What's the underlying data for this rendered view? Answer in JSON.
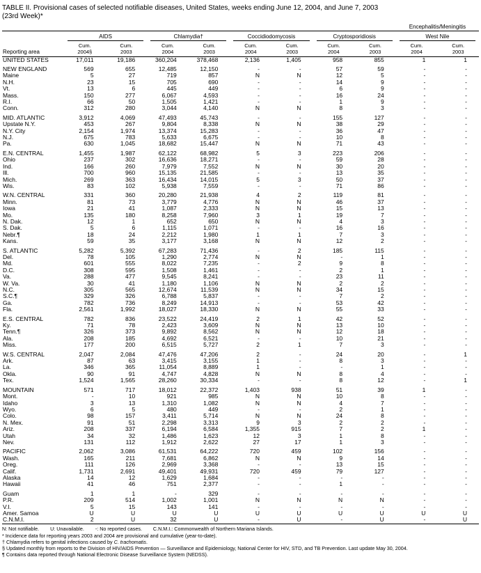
{
  "title": "TABLE II. Provisional cases of selected notifiable diseases, United States, weeks ending June 12, 2004, and June 7, 2003\n(23rd Week)*",
  "colors": {
    "background": "#ffffff",
    "text": "#000000",
    "rules": "#000000"
  },
  "header": {
    "reporting_area_label": "Reporting area",
    "groups": [
      {
        "label": "AIDS",
        "cum2004": "Cum.\n2004§",
        "cum2003": "Cum.\n2003"
      },
      {
        "label": "Chlamydia†",
        "cum2004": "Cum.\n2004",
        "cum2003": "Cum.\n2003"
      },
      {
        "label": "Coccidiodomycosis",
        "cum2004": "Cum.\n2004",
        "cum2003": "Cum.\n2003"
      },
      {
        "label": "Cryptosporidiosis",
        "cum2004": "Cum.\n2004",
        "cum2003": "Cum.\n2003"
      },
      {
        "top_label": "Encephalitis/Meningitis",
        "label": "West Nile",
        "cum2004": "Cum.\n2004",
        "cum2003": "Cum.\n2003"
      }
    ]
  },
  "table": {
    "rows": [
      {
        "area": "UNITED STATES",
        "section": true,
        "values": [
          "17,011",
          "19,186",
          "360,204",
          "378,468",
          "2,136",
          "1,405",
          "958",
          "855",
          "1",
          "1"
        ]
      },
      {
        "area": "NEW ENGLAND",
        "section": true,
        "gap": true,
        "values": [
          "569",
          "655",
          "12,485",
          "12,150",
          "-",
          "-",
          "57",
          "59",
          "-",
          "-"
        ]
      },
      {
        "area": "Maine",
        "values": [
          "5",
          "27",
          "719",
          "857",
          "N",
          "N",
          "12",
          "5",
          "-",
          "-"
        ]
      },
      {
        "area": "N.H.",
        "values": [
          "23",
          "15",
          "705",
          "690",
          "-",
          "-",
          "14",
          "9",
          "-",
          "-"
        ]
      },
      {
        "area": "Vt.",
        "values": [
          "13",
          "6",
          "445",
          "449",
          "-",
          "-",
          "6",
          "9",
          "-",
          "-"
        ]
      },
      {
        "area": "Mass.",
        "values": [
          "150",
          "277",
          "6,067",
          "4,593",
          "-",
          "-",
          "16",
          "24",
          "-",
          "-"
        ]
      },
      {
        "area": "R.I.",
        "values": [
          "66",
          "50",
          "1,505",
          "1,421",
          "-",
          "-",
          "1",
          "9",
          "-",
          "-"
        ]
      },
      {
        "area": "Conn.",
        "values": [
          "312",
          "280",
          "3,044",
          "4,140",
          "N",
          "N",
          "8",
          "3",
          "-",
          "-"
        ]
      },
      {
        "area": "MID. ATLANTIC",
        "section": true,
        "gap": true,
        "values": [
          "3,912",
          "4,069",
          "47,493",
          "45,743",
          "-",
          "-",
          "155",
          "127",
          "-",
          "-"
        ]
      },
      {
        "area": "Upstate N.Y.",
        "values": [
          "453",
          "267",
          "9,804",
          "8,338",
          "N",
          "N",
          "38",
          "29",
          "-",
          "-"
        ]
      },
      {
        "area": "N.Y. City",
        "values": [
          "2,154",
          "1,974",
          "13,374",
          "15,283",
          "-",
          "-",
          "36",
          "47",
          "-",
          "-"
        ]
      },
      {
        "area": "N.J.",
        "values": [
          "675",
          "783",
          "5,633",
          "6,675",
          "-",
          "-",
          "10",
          "8",
          "-",
          "-"
        ]
      },
      {
        "area": "Pa.",
        "values": [
          "630",
          "1,045",
          "18,682",
          "15,447",
          "N",
          "N",
          "71",
          "43",
          "-",
          "-"
        ]
      },
      {
        "area": "E.N. CENTRAL",
        "section": true,
        "gap": true,
        "values": [
          "1,455",
          "1,987",
          "62,122",
          "68,982",
          "5",
          "3",
          "223",
          "206",
          "-",
          "-"
        ]
      },
      {
        "area": "Ohio",
        "values": [
          "237",
          "302",
          "16,636",
          "18,271",
          "-",
          "-",
          "59",
          "28",
          "-",
          "-"
        ]
      },
      {
        "area": "Ind.",
        "values": [
          "166",
          "260",
          "7,979",
          "7,552",
          "N",
          "N",
          "30",
          "20",
          "-",
          "-"
        ]
      },
      {
        "area": "Ill.",
        "values": [
          "700",
          "960",
          "15,135",
          "21,585",
          "-",
          "-",
          "13",
          "35",
          "-",
          "-"
        ]
      },
      {
        "area": "Mich.",
        "values": [
          "269",
          "363",
          "16,434",
          "14,015",
          "5",
          "3",
          "50",
          "37",
          "-",
          "-"
        ]
      },
      {
        "area": "Wis.",
        "values": [
          "83",
          "102",
          "5,938",
          "7,559",
          "-",
          "-",
          "71",
          "86",
          "-",
          "-"
        ]
      },
      {
        "area": "W.N. CENTRAL",
        "section": true,
        "gap": true,
        "values": [
          "331",
          "360",
          "20,280",
          "21,938",
          "4",
          "2",
          "119",
          "81",
          "-",
          "-"
        ]
      },
      {
        "area": "Minn.",
        "values": [
          "81",
          "73",
          "3,779",
          "4,776",
          "N",
          "N",
          "46",
          "37",
          "-",
          "-"
        ]
      },
      {
        "area": "Iowa",
        "values": [
          "21",
          "41",
          "1,087",
          "2,333",
          "N",
          "N",
          "15",
          "13",
          "-",
          "-"
        ]
      },
      {
        "area": "Mo.",
        "values": [
          "135",
          "180",
          "8,258",
          "7,960",
          "3",
          "1",
          "19",
          "7",
          "-",
          "-"
        ]
      },
      {
        "area": "N. Dak.",
        "values": [
          "12",
          "1",
          "652",
          "650",
          "N",
          "N",
          "4",
          "3",
          "-",
          "-"
        ]
      },
      {
        "area": "S. Dak.",
        "values": [
          "5",
          "6",
          "1,115",
          "1,071",
          "-",
          "-",
          "16",
          "16",
          "-",
          "-"
        ]
      },
      {
        "area": "Nebr.¶",
        "values": [
          "18",
          "24",
          "2,212",
          "1,980",
          "1",
          "1",
          "7",
          "3",
          "-",
          "-"
        ]
      },
      {
        "area": "Kans.",
        "values": [
          "59",
          "35",
          "3,177",
          "3,168",
          "N",
          "N",
          "12",
          "2",
          "-",
          "-"
        ]
      },
      {
        "area": "S. ATLANTIC",
        "section": true,
        "gap": true,
        "values": [
          "5,282",
          "5,392",
          "67,283",
          "71,436",
          "-",
          "2",
          "185",
          "115",
          "-",
          "-"
        ]
      },
      {
        "area": "Del.",
        "values": [
          "78",
          "105",
          "1,290",
          "2,774",
          "N",
          "N",
          "-",
          "1",
          "-",
          "-"
        ]
      },
      {
        "area": "Md.",
        "values": [
          "601",
          "555",
          "8,022",
          "7,235",
          "-",
          "2",
          "9",
          "8",
          "-",
          "-"
        ]
      },
      {
        "area": "D.C.",
        "values": [
          "308",
          "595",
          "1,508",
          "1,461",
          "-",
          "-",
          "2",
          "1",
          "-",
          "-"
        ]
      },
      {
        "area": "Va.",
        "values": [
          "288",
          "477",
          "9,545",
          "8,241",
          "-",
          "-",
          "23",
          "11",
          "-",
          "-"
        ]
      },
      {
        "area": "W. Va.",
        "values": [
          "30",
          "41",
          "1,180",
          "1,106",
          "N",
          "N",
          "2",
          "2",
          "-",
          "-"
        ]
      },
      {
        "area": "N.C.",
        "values": [
          "305",
          "565",
          "12,674",
          "11,539",
          "N",
          "N",
          "34",
          "15",
          "-",
          "-"
        ]
      },
      {
        "area": "S.C.¶",
        "values": [
          "329",
          "326",
          "6,788",
          "5,837",
          "-",
          "-",
          "7",
          "2",
          "-",
          "-"
        ]
      },
      {
        "area": "Ga.",
        "values": [
          "782",
          "736",
          "8,249",
          "14,913",
          "-",
          "-",
          "53",
          "42",
          "-",
          "-"
        ]
      },
      {
        "area": "Fla.",
        "values": [
          "2,561",
          "1,992",
          "18,027",
          "18,330",
          "N",
          "N",
          "55",
          "33",
          "-",
          "-"
        ]
      },
      {
        "area": "E.S. CENTRAL",
        "section": true,
        "gap": true,
        "values": [
          "782",
          "836",
          "23,522",
          "24,419",
          "2",
          "1",
          "42",
          "52",
          "-",
          "-"
        ]
      },
      {
        "area": "Ky.",
        "values": [
          "71",
          "78",
          "2,423",
          "3,609",
          "N",
          "N",
          "13",
          "10",
          "-",
          "-"
        ]
      },
      {
        "area": "Tenn.¶",
        "values": [
          "326",
          "373",
          "9,892",
          "8,562",
          "N",
          "N",
          "12",
          "18",
          "-",
          "-"
        ]
      },
      {
        "area": "Ala.",
        "values": [
          "208",
          "185",
          "4,692",
          "6,521",
          "-",
          "-",
          "10",
          "21",
          "-",
          "-"
        ]
      },
      {
        "area": "Miss.",
        "values": [
          "177",
          "200",
          "6,515",
          "5,727",
          "2",
          "1",
          "7",
          "3",
          "-",
          "-"
        ]
      },
      {
        "area": "W.S. CENTRAL",
        "section": true,
        "gap": true,
        "values": [
          "2,047",
          "2,084",
          "47,476",
          "47,206",
          "2",
          "-",
          "24",
          "20",
          "-",
          "1"
        ]
      },
      {
        "area": "Ark.",
        "values": [
          "87",
          "63",
          "3,415",
          "3,155",
          "1",
          "-",
          "8",
          "3",
          "-",
          "-"
        ]
      },
      {
        "area": "La.",
        "values": [
          "346",
          "365",
          "11,054",
          "8,889",
          "1",
          "-",
          "-",
          "1",
          "-",
          "-"
        ]
      },
      {
        "area": "Okla.",
        "values": [
          "90",
          "91",
          "4,747",
          "4,828",
          "N",
          "N",
          "8",
          "4",
          "-",
          "-"
        ]
      },
      {
        "area": "Tex.",
        "values": [
          "1,524",
          "1,565",
          "28,260",
          "30,334",
          "-",
          "-",
          "8",
          "12",
          "-",
          "1"
        ]
      },
      {
        "area": "MOUNTAIN",
        "section": true,
        "gap": true,
        "values": [
          "571",
          "717",
          "18,012",
          "22,372",
          "1,403",
          "938",
          "51",
          "39",
          "1",
          "-"
        ]
      },
      {
        "area": "Mont.",
        "values": [
          "-",
          "10",
          "921",
          "985",
          "N",
          "N",
          "10",
          "8",
          "-",
          "-"
        ]
      },
      {
        "area": "Idaho",
        "values": [
          "3",
          "13",
          "1,310",
          "1,082",
          "N",
          "N",
          "4",
          "7",
          "-",
          "-"
        ]
      },
      {
        "area": "Wyo.",
        "values": [
          "6",
          "5",
          "480",
          "449",
          "-",
          "-",
          "2",
          "1",
          "-",
          "-"
        ]
      },
      {
        "area": "Colo.",
        "values": [
          "98",
          "157",
          "3,411",
          "5,714",
          "N",
          "N",
          "24",
          "8",
          "-",
          "-"
        ]
      },
      {
        "area": "N. Mex.",
        "values": [
          "91",
          "51",
          "2,298",
          "3,313",
          "9",
          "3",
          "2",
          "2",
          "-",
          "-"
        ]
      },
      {
        "area": "Ariz.",
        "values": [
          "208",
          "337",
          "6,194",
          "6,584",
          "1,355",
          "915",
          "7",
          "2",
          "1",
          "-"
        ]
      },
      {
        "area": "Utah",
        "values": [
          "34",
          "32",
          "1,486",
          "1,623",
          "12",
          "3",
          "1",
          "8",
          "-",
          "-"
        ]
      },
      {
        "area": "Nev.",
        "values": [
          "131",
          "112",
          "1,912",
          "2,622",
          "27",
          "17",
          "1",
          "3",
          "-",
          "-"
        ]
      },
      {
        "area": "PACIFIC",
        "section": true,
        "gap": true,
        "values": [
          "2,062",
          "3,086",
          "61,531",
          "64,222",
          "720",
          "459",
          "102",
          "156",
          "-",
          "-"
        ]
      },
      {
        "area": "Wash.",
        "values": [
          "165",
          "211",
          "7,681",
          "6,862",
          "N",
          "N",
          "9",
          "14",
          "-",
          "-"
        ]
      },
      {
        "area": "Oreg.",
        "values": [
          "111",
          "126",
          "2,969",
          "3,368",
          "-",
          "-",
          "13",
          "15",
          "-",
          "-"
        ]
      },
      {
        "area": "Calif.",
        "values": [
          "1,731",
          "2,691",
          "49,401",
          "49,931",
          "720",
          "459",
          "79",
          "127",
          "-",
          "-"
        ]
      },
      {
        "area": "Alaska",
        "values": [
          "14",
          "12",
          "1,629",
          "1,684",
          "-",
          "-",
          "-",
          "-",
          "-",
          "-"
        ]
      },
      {
        "area": "Hawaii",
        "values": [
          "41",
          "46",
          "751",
          "2,377",
          "-",
          "-",
          "1",
          "-",
          "-",
          "-"
        ]
      },
      {
        "area": "Guam",
        "gap": true,
        "values": [
          "1",
          "1",
          "-",
          "329",
          "-",
          "-",
          "-",
          "-",
          "-",
          "-"
        ]
      },
      {
        "area": "P.R.",
        "values": [
          "209",
          "514",
          "1,002",
          "1,001",
          "N",
          "N",
          "N",
          "N",
          "-",
          "-"
        ]
      },
      {
        "area": "V.I.",
        "values": [
          "5",
          "15",
          "143",
          "141",
          "-",
          "-",
          "-",
          "-",
          "-",
          "-"
        ]
      },
      {
        "area": "Amer. Samoa",
        "values": [
          "U",
          "U",
          "U",
          "U",
          "U",
          "U",
          "U",
          "U",
          "U",
          "U"
        ]
      },
      {
        "area": "C.N.M.I.",
        "values": [
          "2",
          "U",
          "32",
          "U",
          "-",
          "U",
          "-",
          "U",
          "-",
          "U"
        ]
      }
    ]
  },
  "footnotes": {
    "legend": "N: Not notifiable.        U: Unavailable.        -: No reported cases.        C.N.M.I.: Commonwealth of Northern Mariana Islands.",
    "items": [
      {
        "marker": "*",
        "text": "Incidence data for reporting years 2003 and 2004 are provisional and cumulative (year-to-date)."
      },
      {
        "marker": "†",
        "prefix": "Chlamydia refers to genital infections caused by ",
        "italic": "C. trachomatis",
        "suffix": "."
      },
      {
        "marker": "§",
        "text": "Updated monthly from reports to the Division of HIV/AIDS Prevention — Surveillance and Epidemiology, National Center for HIV, STD, and TB Prevention. Last update May 30, 2004."
      },
      {
        "marker": "¶",
        "text": "Contains data reported through National Electronic Disease Surveillance System (NEDSS)."
      }
    ]
  }
}
